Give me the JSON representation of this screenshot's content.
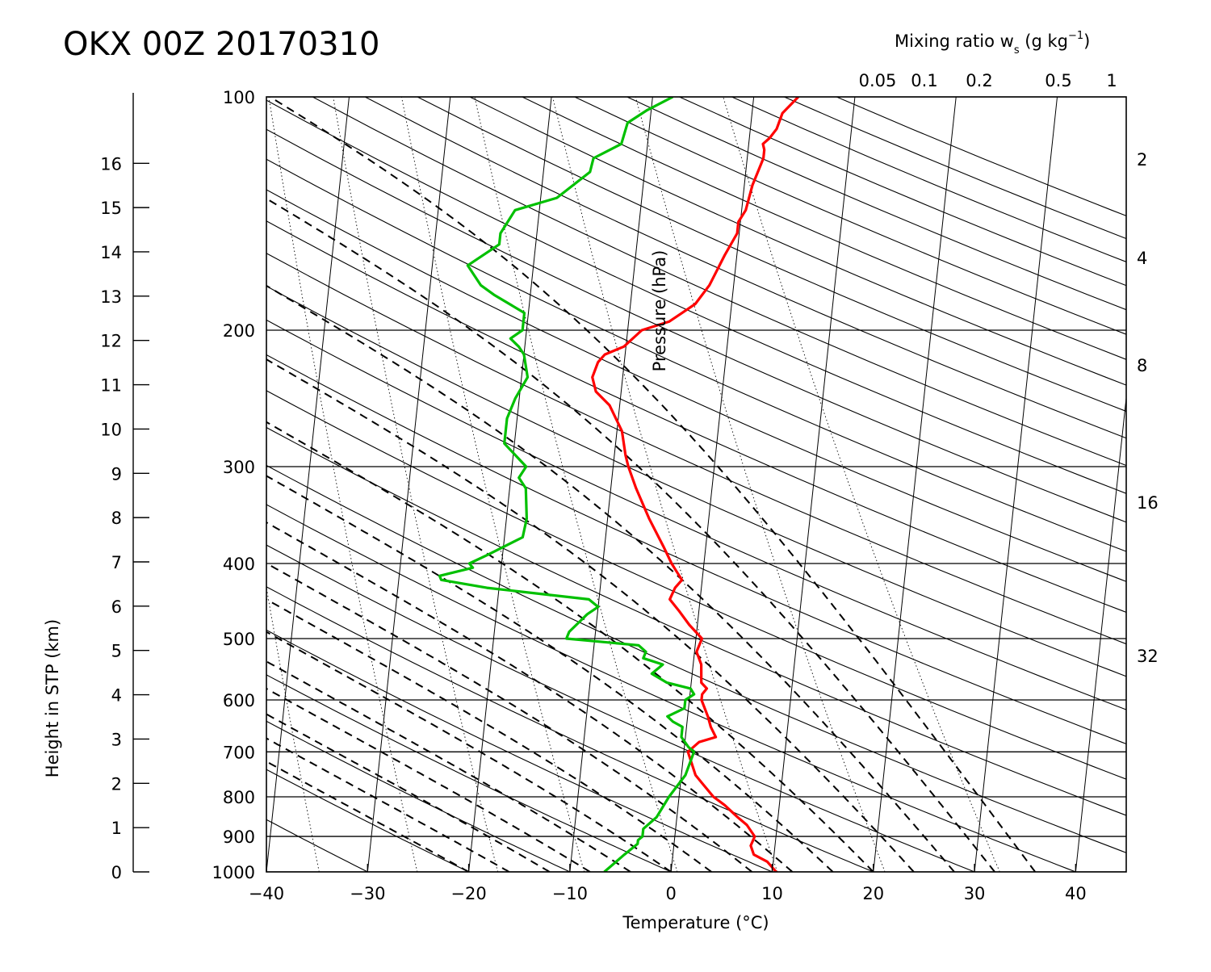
{
  "title": "OKX 00Z 20170310",
  "chart_data": {
    "type": "line",
    "chart_kind": "skew-T log-p diagram",
    "title": "OKX 00Z 20170310",
    "xlabel": "Temperature (°C)",
    "ylabel": "Pressure (hPa)",
    "left_axis_label": "Height in STP (km)",
    "mixing_ratio_label": {
      "main": "Mixing ratio w",
      "sub": "s",
      "unit_open": " (g kg",
      "exp": "−1",
      "unit_close": ")"
    },
    "xlim": [
      -40,
      45
    ],
    "ylim": [
      1000,
      100
    ],
    "y_scale": "log",
    "grid": true,
    "temperature_ticks": [
      "−40",
      "−30",
      "−20",
      "−10",
      "0",
      "10",
      "20",
      "30",
      "40"
    ],
    "pressure_ticks": [
      "1000",
      "900",
      "800",
      "700",
      "600",
      "500",
      "400",
      "300",
      "200",
      "100"
    ],
    "height_ticks": [
      "0",
      "1",
      "2",
      "3",
      "4",
      "5",
      "6",
      "7",
      "8",
      "9",
      "10",
      "11",
      "12",
      "13",
      "14",
      "15",
      "16"
    ],
    "mixing_ratio_top_labels": [
      "0.05",
      "0.1",
      "0.2",
      "0.5",
      "1"
    ],
    "mixing_ratio_right_labels": [
      "2",
      "4",
      "8",
      "16",
      "32"
    ],
    "series": [
      {
        "name": "Temperature",
        "color": "#ff0000",
        "points": [
          [
            1000,
            10.4
          ],
          [
            970,
            9.4
          ],
          [
            950,
            8.0
          ],
          [
            925,
            7.6
          ],
          [
            900,
            7.9
          ],
          [
            870,
            7.0
          ],
          [
            850,
            6.0
          ],
          [
            820,
            4.6
          ],
          [
            800,
            3.4
          ],
          [
            770,
            2.2
          ],
          [
            750,
            1.4
          ],
          [
            700,
            0.4
          ],
          [
            680,
            1.4
          ],
          [
            670,
            3.0
          ],
          [
            650,
            2.4
          ],
          [
            630,
            2.0
          ],
          [
            600,
            1.2
          ],
          [
            590,
            1.2
          ],
          [
            580,
            1.6
          ],
          [
            570,
            1.0
          ],
          [
            540,
            0.8
          ],
          [
            520,
            0.2
          ],
          [
            500,
            0.6
          ],
          [
            480,
            -0.8
          ],
          [
            460,
            -2.0
          ],
          [
            445,
            -3.0
          ],
          [
            430,
            -2.6
          ],
          [
            420,
            -2.0
          ],
          [
            410,
            -2.6
          ],
          [
            400,
            -3.2
          ],
          [
            380,
            -4.2
          ],
          [
            350,
            -5.9
          ],
          [
            320,
            -7.5
          ],
          [
            300,
            -8.5
          ],
          [
            290,
            -8.9
          ],
          [
            270,
            -9.5
          ],
          [
            250,
            -11.0
          ],
          [
            240,
            -12.5
          ],
          [
            230,
            -13.0
          ],
          [
            220,
            -12.6
          ],
          [
            215,
            -12.0
          ],
          [
            210,
            -10.2
          ],
          [
            200,
            -8.6
          ],
          [
            195,
            -6.0
          ],
          [
            190,
            -4.8
          ],
          [
            185,
            -3.6
          ],
          [
            175,
            -2.4
          ],
          [
            160,
            -1.2
          ],
          [
            150,
            -0.2
          ],
          [
            145,
            -0.2
          ],
          [
            140,
            0.4
          ],
          [
            130,
            0.8
          ],
          [
            125,
            1.2
          ],
          [
            120,
            1.6
          ],
          [
            117,
            1.6
          ],
          [
            115,
            1.4
          ],
          [
            113,
            2.0
          ],
          [
            110,
            2.6
          ],
          [
            105,
            3.0
          ],
          [
            100,
            4.4
          ]
        ]
      },
      {
        "name": "Dew point",
        "color": "#00c000",
        "points": [
          [
            1000,
            -6.6
          ],
          [
            950,
            -4.8
          ],
          [
            920,
            -3.6
          ],
          [
            910,
            -3.6
          ],
          [
            900,
            -3.2
          ],
          [
            880,
            -3.2
          ],
          [
            850,
            -2.0
          ],
          [
            800,
            -1.0
          ],
          [
            750,
            0.4
          ],
          [
            700,
            1.0
          ],
          [
            690,
            0.4
          ],
          [
            670,
            -0.4
          ],
          [
            650,
            -0.4
          ],
          [
            640,
            -1.4
          ],
          [
            630,
            -2.0
          ],
          [
            615,
            -0.4
          ],
          [
            600,
            -0.4
          ],
          [
            590,
            0.4
          ],
          [
            580,
            0.0
          ],
          [
            570,
            -2.4
          ],
          [
            555,
            -4.0
          ],
          [
            540,
            -3.0
          ],
          [
            530,
            -5.0
          ],
          [
            520,
            -4.8
          ],
          [
            510,
            -5.6
          ],
          [
            500,
            -12.8
          ],
          [
            490,
            -12.6
          ],
          [
            465,
            -11.0
          ],
          [
            455,
            -10.0
          ],
          [
            445,
            -11.0
          ],
          [
            430,
            -21.2
          ],
          [
            420,
            -25.8
          ],
          [
            415,
            -26.0
          ],
          [
            405,
            -22.8
          ],
          [
            400,
            -23.2
          ],
          [
            390,
            -21.5
          ],
          [
            370,
            -18.2
          ],
          [
            350,
            -18.0
          ],
          [
            320,
            -18.4
          ],
          [
            310,
            -19.2
          ],
          [
            300,
            -18.6
          ],
          [
            280,
            -21.0
          ],
          [
            260,
            -21.0
          ],
          [
            245,
            -20.4
          ],
          [
            230,
            -19.4
          ],
          [
            215,
            -20.0
          ],
          [
            210,
            -20.6
          ],
          [
            205,
            -21.5
          ],
          [
            200,
            -20.4
          ],
          [
            190,
            -20.4
          ],
          [
            180,
            -23.6
          ],
          [
            175,
            -25.0
          ],
          [
            165,
            -26.5
          ],
          [
            155,
            -23.6
          ],
          [
            150,
            -23.6
          ],
          [
            140,
            -22.4
          ],
          [
            135,
            -18.4
          ],
          [
            125,
            -15.4
          ],
          [
            120,
            -15.2
          ],
          [
            115,
            -12.6
          ],
          [
            108,
            -12.2
          ],
          [
            104,
            -10.4
          ],
          [
            100,
            -8.0
          ]
        ]
      }
    ]
  }
}
